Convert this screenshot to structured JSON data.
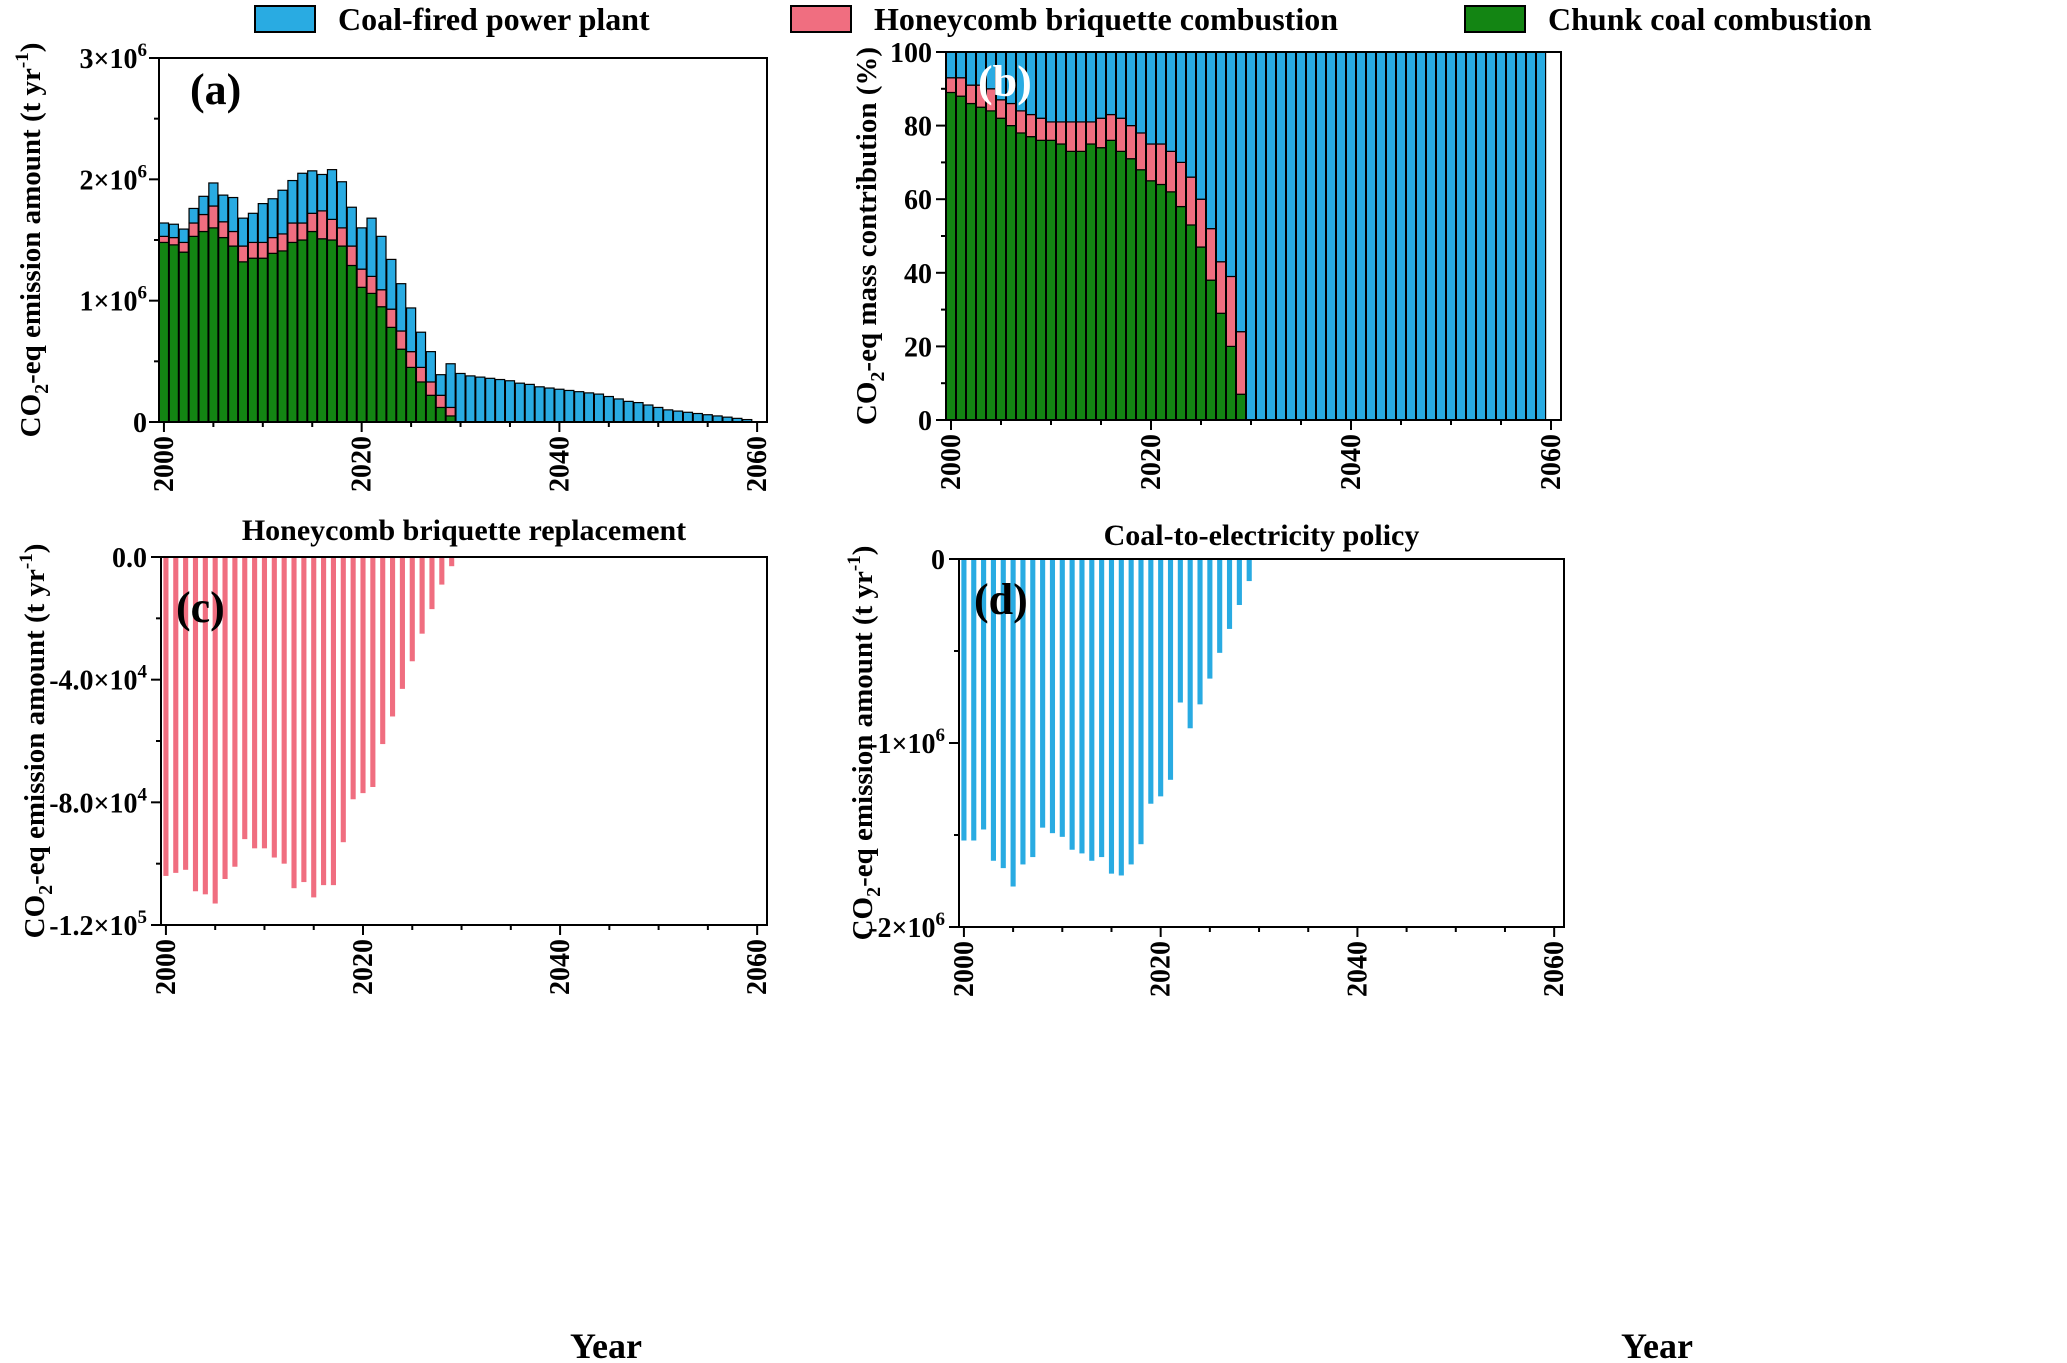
{
  "legend": {
    "items": [
      {
        "label": "Coal-fired power plant",
        "color": "#29abe2"
      },
      {
        "label": "Honeycomb briquette combustion",
        "color": "#f06e80"
      },
      {
        "label": "Chunk coal combustion",
        "color": "#138513"
      }
    ]
  },
  "shared": {
    "xlabel": "Year",
    "xticks": [
      "2000",
      "2020",
      "2040",
      "2060"
    ],
    "xlim": [
      1999.5,
      2061
    ]
  },
  "chart_data": [
    {
      "id": "a",
      "type": "bar",
      "stacked": true,
      "panel_label": "(a)",
      "title": "",
      "ylabel_main": "CO",
      "ylabel_sub": "2",
      "ylabel_rest": "-eq emission amount (t yr",
      "ylabel_sup": "-1",
      "ylabel_end": ")",
      "ylim": [
        0,
        3000000
      ],
      "yticks": [
        {
          "value": 0,
          "mant": "0",
          "exp": ""
        },
        {
          "value": 1000000,
          "mant": "1×10",
          "exp": "6"
        },
        {
          "value": 2000000,
          "mant": "2×10",
          "exp": "6"
        },
        {
          "value": 3000000,
          "mant": "3×10",
          "exp": "6"
        }
      ],
      "x_start": 2000,
      "series": [
        {
          "name": "Chunk coal combustion",
          "color": "#138513",
          "values": [
            1480000,
            1460000,
            1400000,
            1530000,
            1570000,
            1600000,
            1520000,
            1450000,
            1320000,
            1350000,
            1350000,
            1390000,
            1410000,
            1480000,
            1500000,
            1570000,
            1510000,
            1500000,
            1450000,
            1290000,
            1110000,
            1060000,
            950000,
            780000,
            600000,
            450000,
            330000,
            220000,
            120000,
            50000
          ]
        },
        {
          "name": "Honeycomb briquette combustion",
          "color": "#f06e80",
          "values": [
            50000,
            60000,
            80000,
            110000,
            140000,
            180000,
            130000,
            120000,
            130000,
            130000,
            130000,
            130000,
            140000,
            160000,
            140000,
            150000,
            230000,
            170000,
            150000,
            160000,
            150000,
            140000,
            140000,
            150000,
            150000,
            130000,
            120000,
            110000,
            100000,
            70000
          ]
        },
        {
          "name": "Coal-fired power plant",
          "color": "#29abe2",
          "values": [
            110000,
            110000,
            110000,
            120000,
            150000,
            190000,
            220000,
            280000,
            230000,
            240000,
            320000,
            320000,
            360000,
            350000,
            410000,
            350000,
            300000,
            410000,
            380000,
            320000,
            340000,
            480000,
            440000,
            410000,
            390000,
            360000,
            290000,
            250000,
            170000,
            360000,
            400000,
            380000,
            370000,
            360000,
            350000,
            340000,
            320000,
            310000,
            290000,
            280000,
            270000,
            260000,
            250000,
            240000,
            230000,
            210000,
            190000,
            170000,
            160000,
            140000,
            120000,
            100000,
            90000,
            80000,
            70000,
            60000,
            50000,
            40000,
            30000,
            20000
          ]
        }
      ]
    },
    {
      "id": "b",
      "type": "bar",
      "stacked": true,
      "panel_label": "(b)",
      "title": "",
      "ylabel_main": "CO",
      "ylabel_sub": "2",
      "ylabel_rest": "-eq mass contribution (%)",
      "ylabel_sup": "",
      "ylabel_end": "",
      "ylim": [
        0,
        100
      ],
      "yticks": [
        {
          "value": 0,
          "mant": "0",
          "exp": ""
        },
        {
          "value": 20,
          "mant": "20",
          "exp": ""
        },
        {
          "value": 40,
          "mant": "40",
          "exp": ""
        },
        {
          "value": 60,
          "mant": "60",
          "exp": ""
        },
        {
          "value": 80,
          "mant": "80",
          "exp": ""
        },
        {
          "value": 100,
          "mant": "100",
          "exp": ""
        }
      ],
      "x_start": 2000,
      "series": [
        {
          "name": "Chunk coal combustion",
          "color": "#138513",
          "values": [
            89,
            88,
            86,
            85,
            84,
            82,
            80,
            78,
            77,
            76,
            76,
            75,
            73,
            73,
            75,
            74,
            76,
            73,
            71,
            68,
            65,
            64,
            62,
            58,
            53,
            47,
            38,
            29,
            20,
            7
          ]
        },
        {
          "name": "Honeycomb briquette combustion",
          "color": "#f06e80",
          "values": [
            4,
            5,
            5,
            6,
            6,
            5,
            6,
            6,
            6,
            6,
            5,
            6,
            8,
            8,
            6,
            8,
            7,
            9,
            9,
            10,
            10,
            11,
            11,
            12,
            13,
            13,
            14,
            14,
            19,
            17
          ]
        },
        {
          "name": "Coal-fired power plant",
          "color": "#29abe2",
          "values": [
            7,
            7,
            9,
            9,
            10,
            13,
            14,
            16,
            17,
            18,
            19,
            19,
            19,
            19,
            19,
            18,
            17,
            18,
            20,
            22,
            25,
            25,
            27,
            30,
            34,
            40,
            48,
            57,
            61,
            76,
            100,
            100,
            100,
            100,
            100,
            100,
            100,
            100,
            100,
            100,
            100,
            100,
            100,
            100,
            100,
            100,
            100,
            100,
            100,
            100,
            100,
            100,
            100,
            100,
            100,
            100,
            100,
            100,
            100,
            100
          ]
        }
      ]
    },
    {
      "id": "c",
      "type": "bar",
      "stacked": false,
      "panel_label": "(c)",
      "title": "Honeycomb briquette replacement",
      "ylabel_main": "CO",
      "ylabel_sub": "2",
      "ylabel_rest": "-eq emission amount (t yr",
      "ylabel_sup": "-1",
      "ylabel_end": ")",
      "ylim": [
        -120000,
        0
      ],
      "yticks": [
        {
          "value": 0,
          "mant": "0.0",
          "exp": ""
        },
        {
          "value": -40000,
          "mant": "-4.0×10",
          "exp": "4"
        },
        {
          "value": -80000,
          "mant": "-8.0×10",
          "exp": "4"
        },
        {
          "value": -120000,
          "mant": "-1.2×10",
          "exp": "5"
        }
      ],
      "x_start": 2000,
      "series": [
        {
          "name": "Honeycomb briquette combustion",
          "color": "#f06e80",
          "values": [
            -104000,
            -103000,
            -102000,
            -109000,
            -110000,
            -113000,
            -105000,
            -101000,
            -92000,
            -95000,
            -95000,
            -98000,
            -100000,
            -108000,
            -106000,
            -111000,
            -107000,
            -107000,
            -93000,
            -79000,
            -77000,
            -75000,
            -61000,
            -52000,
            -43000,
            -34000,
            -25000,
            -17000,
            -9000,
            -3000
          ]
        }
      ]
    },
    {
      "id": "d",
      "type": "bar",
      "stacked": false,
      "panel_label": "(d)",
      "title": "Coal-to-electricity policy",
      "ylabel_main": "CO",
      "ylabel_sub": "2",
      "ylabel_rest": "-eq emission amount (t yr",
      "ylabel_sup": "-1",
      "ylabel_end": ")",
      "ylim": [
        -2000000,
        0
      ],
      "yticks": [
        {
          "value": 0,
          "mant": "0",
          "exp": ""
        },
        {
          "value": -1000000,
          "mant": "-1×10",
          "exp": "6"
        },
        {
          "value": -2000000,
          "mant": "-2×10",
          "exp": "6"
        }
      ],
      "x_start": 2000,
      "series": [
        {
          "name": "Coal-fired power plant",
          "color": "#29abe2",
          "values": [
            -1530000,
            -1530000,
            -1470000,
            -1640000,
            -1680000,
            -1780000,
            -1660000,
            -1620000,
            -1460000,
            -1490000,
            -1510000,
            -1580000,
            -1600000,
            -1640000,
            -1620000,
            -1710000,
            -1720000,
            -1660000,
            -1550000,
            -1330000,
            -1290000,
            -1200000,
            -780000,
            -920000,
            -790000,
            -650000,
            -510000,
            -380000,
            -250000,
            -120000
          ]
        }
      ]
    }
  ]
}
